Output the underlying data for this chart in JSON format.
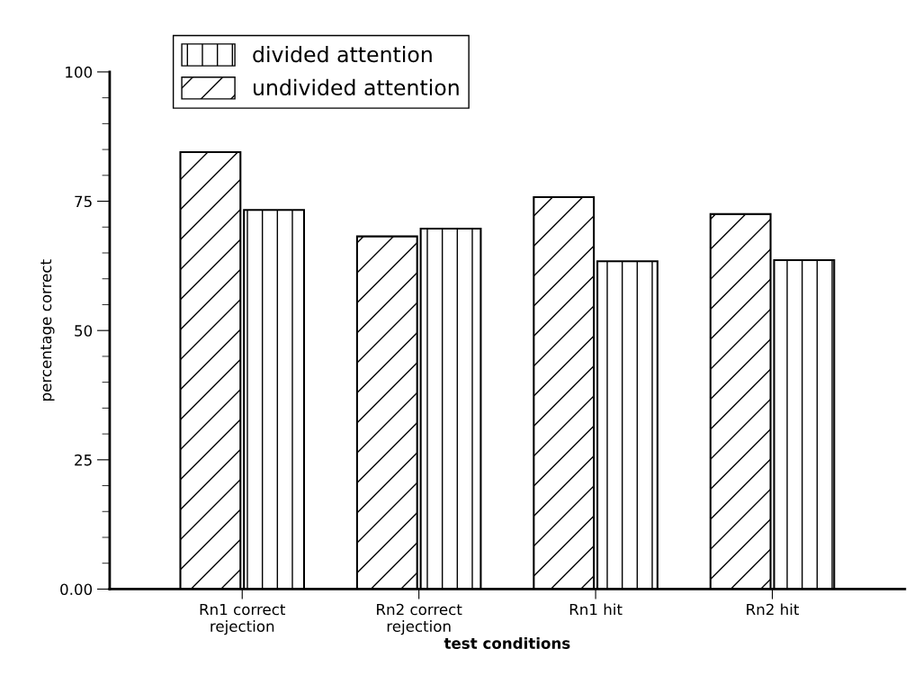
{
  "chart_data": {
    "type": "bar",
    "xlabel": "test conditions",
    "ylabel": "percentage correct",
    "categories": [
      "Rn1 correct\nrejection",
      "Rn2 correct\nrejection",
      "Rn1 hit",
      "Rn2 hit"
    ],
    "series": [
      {
        "name": "undivided attention",
        "color": "#ffffff",
        "values": [
          84.5,
          68.2,
          75.8,
          72.5
        ]
      },
      {
        "name": "divided attention",
        "color": "#ffffff",
        "values": [
          73.3,
          69.7,
          63.4,
          63.6
        ]
      }
    ],
    "ylim": [
      0,
      100
    ],
    "yticks": [
      {
        "value": 0,
        "label": "0.00"
      },
      25,
      50,
      75,
      100
    ],
    "grid": false,
    "legend": "top left"
  }
}
